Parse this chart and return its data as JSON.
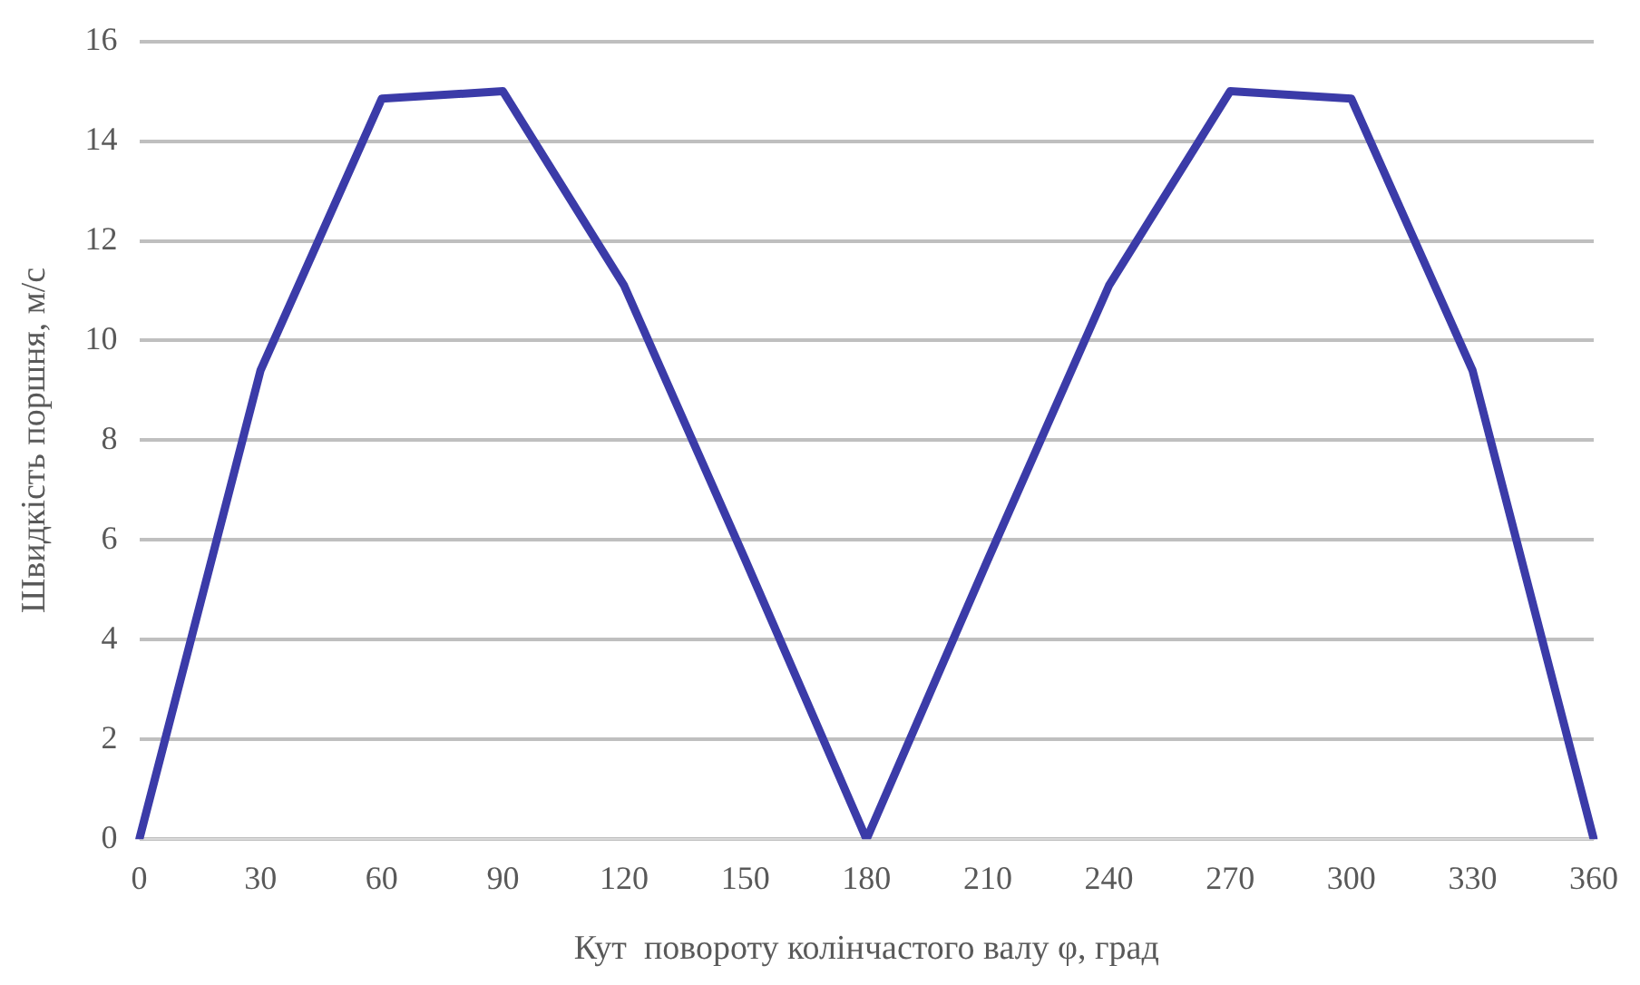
{
  "chart_data": {
    "type": "line",
    "xlabel": "Кут  повороту колінчастого валу φ, град",
    "ylabel": "Швидкість поршня, м/с",
    "categories": [
      "0",
      "30",
      "60",
      "90",
      "120",
      "150",
      "180",
      "210",
      "240",
      "270",
      "300",
      "330",
      "360"
    ],
    "values": [
      0,
      9.4,
      14.85,
      15,
      11.1,
      5.6,
      0,
      5.6,
      11.1,
      15,
      14.85,
      9.4,
      0
    ],
    "color": "#3b3ba8",
    "ylim": [
      0,
      16
    ],
    "yticks": [
      0,
      2,
      4,
      6,
      8,
      10,
      12,
      14,
      16
    ],
    "grid": "y",
    "marker": "none",
    "line_style": "solid",
    "legend": false
  }
}
